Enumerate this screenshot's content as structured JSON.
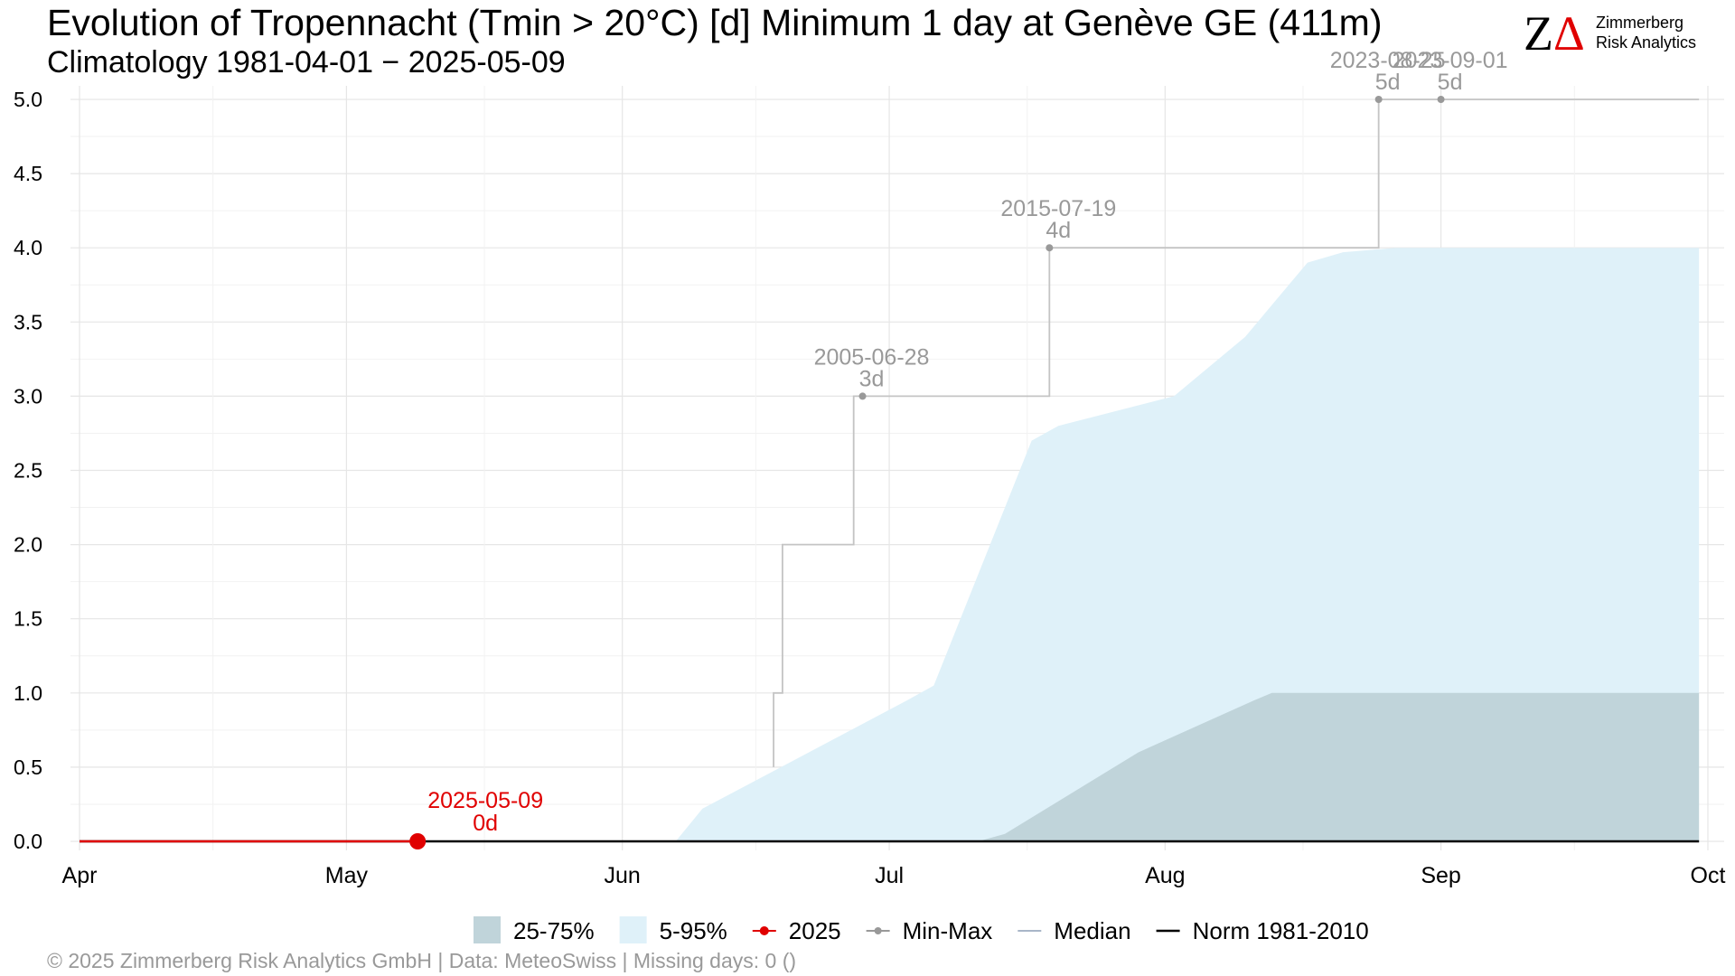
{
  "header": {
    "title": "Evolution of Tropennacht (Tmin > 20°C) [d] Minimum 1 day at Genève  GE (411m)",
    "subtitle": "Climatology 1981-04-01 − 2025-05-09"
  },
  "logo": {
    "mark_z": "Z",
    "mark_delta": "Δ",
    "line1": "Zimmerberg",
    "line2": "Risk Analytics"
  },
  "footer": {
    "text": "©  2025 Zimmerberg Risk Analytics GmbH | Data: MeteoSwiss | Missing days: 0 ()"
  },
  "colors": {
    "band_25_75": "#c0d4da",
    "band_5_95": "#dff1f9",
    "current": "#e00000",
    "minmax": "#999999",
    "median": "#a8b6c8",
    "norm": "#000000",
    "grid": "#e6e6e6"
  },
  "chart_data": {
    "type": "area",
    "xlim": [
      "2025-04-01",
      "2025-10-01"
    ],
    "ylim": [
      0,
      5
    ],
    "y_ticks": [
      "0.0",
      "0.5",
      "1.0",
      "1.5",
      "2.0",
      "2.5",
      "3.0",
      "3.5",
      "4.0",
      "4.5",
      "5.0"
    ],
    "x_ticks": [
      {
        "label": "Apr",
        "date": "2025-04-01"
      },
      {
        "label": "May",
        "date": "2025-05-01"
      },
      {
        "label": "Jun",
        "date": "2025-06-01"
      },
      {
        "label": "Jul",
        "date": "2025-07-01"
      },
      {
        "label": "Aug",
        "date": "2025-08-01"
      },
      {
        "label": "Sep",
        "date": "2025-09-01"
      },
      {
        "label": "Oct",
        "date": "2025-10-01"
      }
    ],
    "grid": true,
    "band_5_95": {
      "lower": [
        [
          "2025-04-01",
          0
        ],
        [
          "2025-09-30",
          0
        ]
      ],
      "upper": [
        [
          "2025-04-01",
          0
        ],
        [
          "2025-06-07",
          0
        ],
        [
          "2025-06-10",
          0.22
        ],
        [
          "2025-07-03",
          0.95
        ],
        [
          "2025-07-06",
          1.05
        ],
        [
          "2025-07-17",
          2.7
        ],
        [
          "2025-07-20",
          2.8
        ],
        [
          "2025-08-02",
          3.0
        ],
        [
          "2025-08-10",
          3.4
        ],
        [
          "2025-08-17",
          3.9
        ],
        [
          "2025-08-21",
          3.97
        ],
        [
          "2025-08-27",
          4.0
        ],
        [
          "2025-09-30",
          4.0
        ]
      ]
    },
    "band_25_75": {
      "lower": [
        [
          "2025-04-01",
          0
        ],
        [
          "2025-09-30",
          0
        ]
      ],
      "upper": [
        [
          "2025-04-01",
          0
        ],
        [
          "2025-07-11",
          0
        ],
        [
          "2025-07-14",
          0.05
        ],
        [
          "2025-07-29",
          0.6
        ],
        [
          "2025-08-11",
          0.95
        ],
        [
          "2025-08-13",
          1.0
        ],
        [
          "2025-09-30",
          1.0
        ]
      ]
    },
    "min_max_steps": [
      [
        "2025-06-18",
        0.5
      ],
      [
        "2025-06-18",
        1.0
      ],
      [
        "2025-06-19",
        1.0
      ],
      [
        "2025-06-19",
        2.0
      ],
      [
        "2025-06-27",
        2.0
      ],
      [
        "2025-06-27",
        3.0
      ],
      [
        "2025-07-19",
        3.0
      ],
      [
        "2025-07-19",
        4.0
      ],
      [
        "2025-08-25",
        4.0
      ],
      [
        "2025-08-25",
        5.0
      ],
      [
        "2025-09-30",
        5.0
      ]
    ],
    "min_max_points": [
      {
        "date": "2025-06-28",
        "value": 3,
        "label": "2005-06-28",
        "days": "3d"
      },
      {
        "date": "2025-07-19",
        "value": 4,
        "label": "2015-07-19",
        "days": "4d"
      },
      {
        "date": "2025-08-25",
        "value": 5,
        "label": "2023-08-25",
        "days": "5d"
      },
      {
        "date": "2025-09-01",
        "value": 5,
        "label": "2023-09-01",
        "days": "5d"
      }
    ],
    "median": [
      [
        "2025-04-01",
        0
      ],
      [
        "2025-09-30",
        0
      ]
    ],
    "norm": [
      [
        "2025-04-01",
        0
      ],
      [
        "2025-09-30",
        0
      ]
    ],
    "current": {
      "series": [
        [
          "2025-04-01",
          0
        ],
        [
          "2025-05-09",
          0
        ]
      ],
      "marker": {
        "date": "2025-05-09",
        "value": 0,
        "label": "2025-05-09",
        "days": "0d"
      }
    },
    "legend": {
      "placement": "bottom",
      "items": [
        {
          "label": "25-75%",
          "kind": "band_25_75"
        },
        {
          "label": "5-95%",
          "kind": "band_5_95"
        },
        {
          "label": "2025",
          "kind": "current"
        },
        {
          "label": "Min-Max",
          "kind": "minmax"
        },
        {
          "label": "Median",
          "kind": "median"
        },
        {
          "label": "Norm 1981-2010",
          "kind": "norm"
        }
      ]
    }
  }
}
